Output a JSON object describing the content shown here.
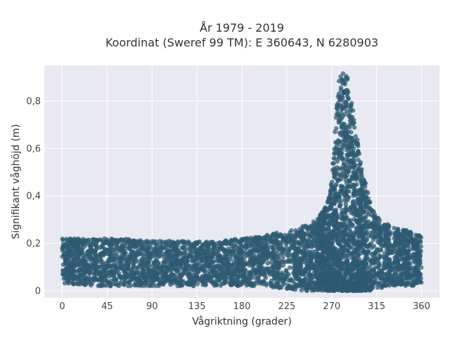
{
  "chart_data": {
    "type": "scatter",
    "title_line1": "År 1979 - 2019",
    "title_line2": "Koordinat (Sweref 99 TM): E 360643, N 6280903",
    "xlabel": "Vågriktning (grader)",
    "ylabel": "Signifikant våghöjd (m)",
    "xlim": [
      -18,
      378
    ],
    "ylim": [
      -0.03,
      0.95
    ],
    "x_ticks": [
      0,
      45,
      90,
      135,
      180,
      225,
      270,
      315,
      360
    ],
    "x_tick_labels": [
      "0",
      "45",
      "90",
      "135",
      "180",
      "225",
      "270",
      "315",
      "360"
    ],
    "y_ticks": [
      0,
      0.2,
      0.4,
      0.6,
      0.8
    ],
    "y_tick_labels": [
      "0",
      "0,2",
      "0,4",
      "0,6",
      "0,8"
    ],
    "grid": true,
    "legend": "none",
    "marker_color": "#2e5a71",
    "plot_background": "#e8e9f1",
    "envelope": {
      "x": [
        0,
        30,
        60,
        90,
        120,
        150,
        180,
        200,
        220,
        240,
        255,
        265,
        270,
        275,
        278,
        282,
        286,
        290,
        295,
        300,
        310,
        320,
        330,
        340,
        350,
        360
      ],
      "y_max": [
        0.22,
        0.22,
        0.22,
        0.21,
        0.21,
        0.21,
        0.22,
        0.23,
        0.25,
        0.27,
        0.3,
        0.36,
        0.47,
        0.78,
        0.92,
        0.92,
        0.9,
        0.82,
        0.66,
        0.52,
        0.35,
        0.3,
        0.27,
        0.26,
        0.25,
        0.23
      ],
      "y_min": [
        0.03,
        0.02,
        0.02,
        0.02,
        0.02,
        0.02,
        0.02,
        0.02,
        0.01,
        0.0,
        0.0,
        0.0,
        0.0,
        0.0,
        0.0,
        0.0,
        0.0,
        0.0,
        0.0,
        0.0,
        0.0,
        0.01,
        0.02,
        0.02,
        0.02,
        0.03
      ]
    }
  }
}
